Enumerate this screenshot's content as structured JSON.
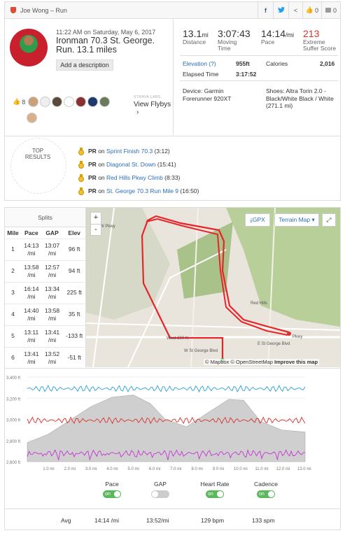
{
  "header": {
    "title": "Joe Wong – Run",
    "facebook": "f",
    "twitter": "t",
    "share": "<",
    "kudos_count": "0",
    "comment_count": "0"
  },
  "activity": {
    "time": "11:22 AM on Saturday, May 6, 2017",
    "title": "Ironman 70.3 St. George. Run. 13.1 miles",
    "add_description": "Add a description",
    "kudos": "8",
    "view_flybys": "View Flybys",
    "flyby_logo": "STRAVA LABS",
    "chevron": "›"
  },
  "stats": {
    "distance": {
      "value": "13.1",
      "unit": "mi",
      "label": "Distance"
    },
    "moving_time": {
      "value": "3:07:43",
      "label": "Moving Time"
    },
    "pace": {
      "value": "14:14",
      "unit": "/mi",
      "label": "Pace"
    },
    "suffer": {
      "value": "213",
      "label": "Extreme Suffer Score"
    },
    "elevation_label": "Elevation (?)",
    "elevation_value": "955ft",
    "calories_label": "Calories",
    "calories_value": "2,016",
    "elapsed_label": "Elapsed Time",
    "elapsed_value": "3:17:52",
    "device": "Device: Garmin Forerunner 920XT",
    "shoes": "Shoes: Altra Torin 2.0 - Black/White Black / White (271.1 mi)"
  },
  "top_results": {
    "label": "TOP RESULTS",
    "items": [
      {
        "pr": "PR",
        "on": "on",
        "segment": "Sprint Finish 70.3",
        "time": "(3:12)"
      },
      {
        "pr": "PR",
        "on": "on",
        "segment": "Diagonal St. Down",
        "time": "(15:41)"
      },
      {
        "pr": "PR",
        "on": "on",
        "segment": "Red Hills Pkwy Climb",
        "time": "(8:33)"
      },
      {
        "pr": "PR",
        "on": "on",
        "segment": "St. George 70.3 Run Mile 9",
        "time": "(16:50)"
      }
    ]
  },
  "splits": {
    "title": "Splits",
    "columns": [
      "Mile",
      "Pace",
      "GAP",
      "Elev"
    ],
    "rows": [
      {
        "mile": "1",
        "pace": "14:13",
        "gap": "13:07",
        "unit": "/mi",
        "elev": "96 ft"
      },
      {
        "mile": "2",
        "pace": "13:58",
        "gap": "12:57",
        "unit": "/mi",
        "elev": "94 ft"
      },
      {
        "mile": "3",
        "pace": "16:14",
        "gap": "13:34",
        "unit": "/mi",
        "elev": "225 ft"
      },
      {
        "mile": "4",
        "pace": "14:40",
        "gap": "13:58",
        "unit": "/mi",
        "elev": "35 ft"
      },
      {
        "mile": "5",
        "pace": "13:11",
        "gap": "13:41",
        "unit": "/mi",
        "elev": "-133 ft"
      },
      {
        "mile": "6",
        "pace": "13:41",
        "gap": "13:52",
        "unit": "/mi",
        "elev": "-51 ft"
      }
    ]
  },
  "map": {
    "zoom_in": "+",
    "zoom_out": "-",
    "gpx": "GPX",
    "terrain": "Terrain Map ▾",
    "fullscreen": "⤢",
    "attribution": "© Mapbox © OpenStreetMap",
    "improve": "Improve this map",
    "labels": [
      "W Pkwy",
      "Red Hills",
      "West 200 N",
      "W St George Blvd",
      "E St George Blvd",
      "Pkwy"
    ]
  },
  "chart_data": {
    "type": "line",
    "x_ticks": [
      "1.0 mi",
      "2.0 mi",
      "3.0 mi",
      "4.0 mi",
      "5.0 mi",
      "6.0 mi",
      "7.0 mi",
      "8.0 mi",
      "9.0 mi",
      "10.0 mi",
      "11.0 mi",
      "12.0 mi",
      "13.0 mi"
    ],
    "y_ticks": [
      "3,400 ft",
      "3,200 ft",
      "3,000 ft",
      "2,800 ft",
      "2,600 ft"
    ],
    "xlim": [
      0,
      13.1
    ],
    "ylim": [
      2600,
      3400
    ],
    "elevation": {
      "x": [
        0,
        1,
        2,
        3,
        4,
        5,
        5.8,
        6.5,
        7.5,
        8.5,
        9.5,
        10.2,
        11,
        12,
        13.1
      ],
      "values": [
        2780,
        2860,
        2990,
        3120,
        3210,
        3230,
        3150,
        3000,
        2930,
        3060,
        3190,
        3180,
        2980,
        2900,
        2880
      ]
    },
    "series": [
      {
        "name": "Pace",
        "color": "#2a9fd6",
        "level": 3290
      },
      {
        "name": "Heart Rate",
        "color": "#d63330",
        "level": 2990
      },
      {
        "name": "Cadence",
        "color": "#c534d6",
        "level": 2680
      }
    ]
  },
  "legend": {
    "pace": "Pace",
    "gap": "GAP",
    "heart_rate": "Heart Rate",
    "cadence": "Cadence",
    "on": "on"
  },
  "averages": {
    "label": "Avg",
    "pace": "14:14 /mi",
    "gap": "13:52/mi",
    "heart_rate": "129 bpm",
    "cadence": "133 spm"
  }
}
